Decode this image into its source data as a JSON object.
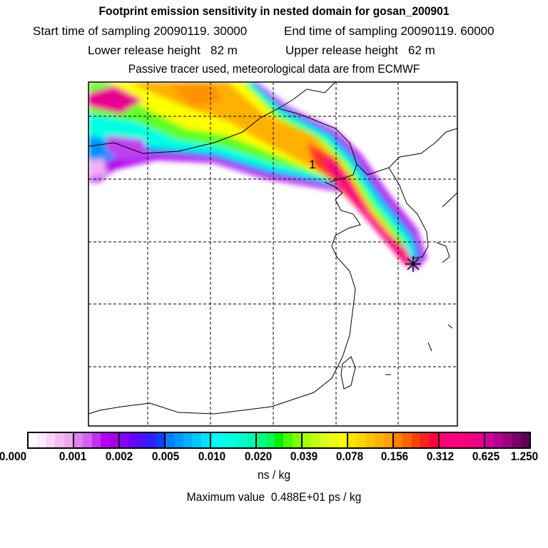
{
  "header": {
    "title": "Footprint emission sensitivity in nested domain for gosan_200901",
    "start_time": "Start time of sampling 20090119. 30000",
    "end_time": "End time of sampling 20090119. 60000",
    "lower_release": "Lower release height   82 m",
    "upper_release": "Upper release height   62 m",
    "tracer_info": "Passive tracer used, meteorological data are from ECMWF"
  },
  "map": {
    "label_1": "1",
    "receptor_marker": "star-icon"
  },
  "chart_data": {
    "type": "heatmap",
    "title": "Footprint emission sensitivity in nested domain for gosan_200901",
    "colorbar": {
      "ticks": [
        "0.000",
        "0.001",
        "0.002",
        "0.005",
        "0.010",
        "0.020",
        "0.039",
        "0.078",
        "0.156",
        "0.312",
        "0.625",
        "1.250"
      ],
      "unit": "ns / kg",
      "colors": [
        [
          "#ffffff",
          "#fde8fd",
          "#f8d2f8",
          "#f2bcf2",
          "#eea6ee"
        ],
        [
          "#e080f0",
          "#d460f4",
          "#c430f8",
          "#b400f4",
          "#a400e8"
        ],
        [
          "#8400ff",
          "#6a00ff",
          "#4c10ff",
          "#3020ff",
          "#1040ff"
        ],
        [
          "#0080ff",
          "#0098ff",
          "#00b0ff",
          "#00c8ff",
          "#00e0ff"
        ],
        [
          "#00ffff",
          "#00ffee",
          "#00ffdc",
          "#00fcc8",
          "#00f8b4"
        ],
        [
          "#00ff80",
          "#00ff58",
          "#00f000",
          "#48ff00",
          "#80ff00"
        ],
        [
          "#a8ff00",
          "#c4ff10",
          "#d8ff20",
          "#ecff10",
          "#ffff00"
        ],
        [
          "#ffe400",
          "#ffd400",
          "#ffc400",
          "#ffb200",
          "#ffa000"
        ],
        [
          "#ff8000",
          "#ff6400",
          "#ff4000",
          "#ff2020",
          "#ff0040"
        ],
        [
          "#ff0078",
          "#ff0080",
          "#f80080",
          "#f00080",
          "#e80088"
        ],
        [
          "#d0009c",
          "#b40090",
          "#980080",
          "#7c0068",
          "#5c0058"
        ]
      ]
    },
    "max_value": "Maximum value  0.488E+01 ps / kg"
  }
}
